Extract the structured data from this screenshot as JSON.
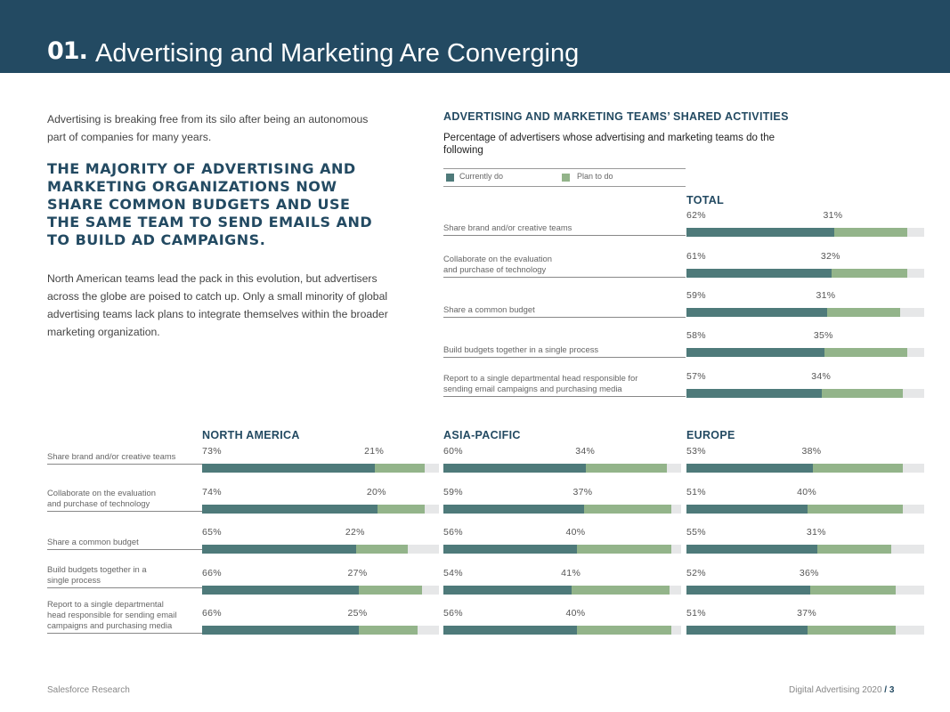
{
  "header": {
    "number": "01.",
    "title": "Advertising and Marketing Are Converging"
  },
  "intro": "Advertising is breaking free from its silo after being an autonomous part of companies for many years.",
  "headline": "THE MAJORITY OF ADVERTISING AND MARKETING ORGANIZATIONS NOW SHARE COMMON BUDGETS AND USE THE SAME TEAM TO SEND EMAILS AND TO BUILD AD CAMPAIGNS.",
  "body": "North American teams lead the pack in this evolution, but advertisers across the globe are poised to catch up. Only a small minority of global advertising teams lack plans to integrate themselves within the broader marketing organization.",
  "chart": {
    "title": "ADVERTISING AND MARKETING TEAMS’ SHARED ACTIVITIES",
    "subtitle": "Percentage of advertisers whose advertising and marketing teams do the following",
    "legend": {
      "current": "Currently do",
      "plan": "Plan to do"
    },
    "colors": {
      "current": "#4e7a7a",
      "plan": "#93b48a",
      "track": "#e6e7e8"
    }
  },
  "chart_data": [
    {
      "type": "bar",
      "title": "TOTAL",
      "categories": [
        [
          "Share brand and/or creative teams"
        ],
        [
          "Collaborate on the evaluation",
          "and purchase of technology"
        ],
        [
          "Share a common budget"
        ],
        [
          "Build budgets together in a single process"
        ],
        [
          "Report to a single departmental head responsible for",
          "sending email campaigns and purchasing media"
        ]
      ],
      "series": [
        {
          "name": "Currently do",
          "values": [
            62,
            61,
            59,
            58,
            57
          ]
        },
        {
          "name": "Plan to do",
          "values": [
            31,
            32,
            31,
            35,
            34
          ]
        }
      ]
    },
    {
      "type": "bar",
      "title": "NORTH AMERICA",
      "categories": [
        [
          "Share brand and/or creative teams"
        ],
        [
          "Collaborate on the evaluation",
          "and purchase of technology"
        ],
        [
          "Share a common budget"
        ],
        [
          "Build budgets together in a",
          "single process"
        ],
        [
          "Report to a single departmental",
          "head responsible for sending email",
          "campaigns and purchasing media"
        ]
      ],
      "series": [
        {
          "name": "Currently do",
          "values": [
            73,
            74,
            65,
            66,
            66
          ]
        },
        {
          "name": "Plan to do",
          "values": [
            21,
            20,
            22,
            27,
            25
          ]
        }
      ]
    },
    {
      "type": "bar",
      "title": "ASIA-PACIFIC",
      "series": [
        {
          "name": "Currently do",
          "values": [
            60,
            59,
            56,
            54,
            56
          ]
        },
        {
          "name": "Plan to do",
          "values": [
            34,
            37,
            40,
            41,
            40
          ]
        }
      ]
    },
    {
      "type": "bar",
      "title": "EUROPE",
      "series": [
        {
          "name": "Currently do",
          "values": [
            53,
            51,
            55,
            52,
            51
          ]
        },
        {
          "name": "Plan to do",
          "values": [
            38,
            40,
            31,
            36,
            37
          ]
        }
      ]
    }
  ],
  "footer": {
    "left": "Salesforce Research",
    "right": "Digital Advertising 2020",
    "separator": "/",
    "page": "3"
  }
}
